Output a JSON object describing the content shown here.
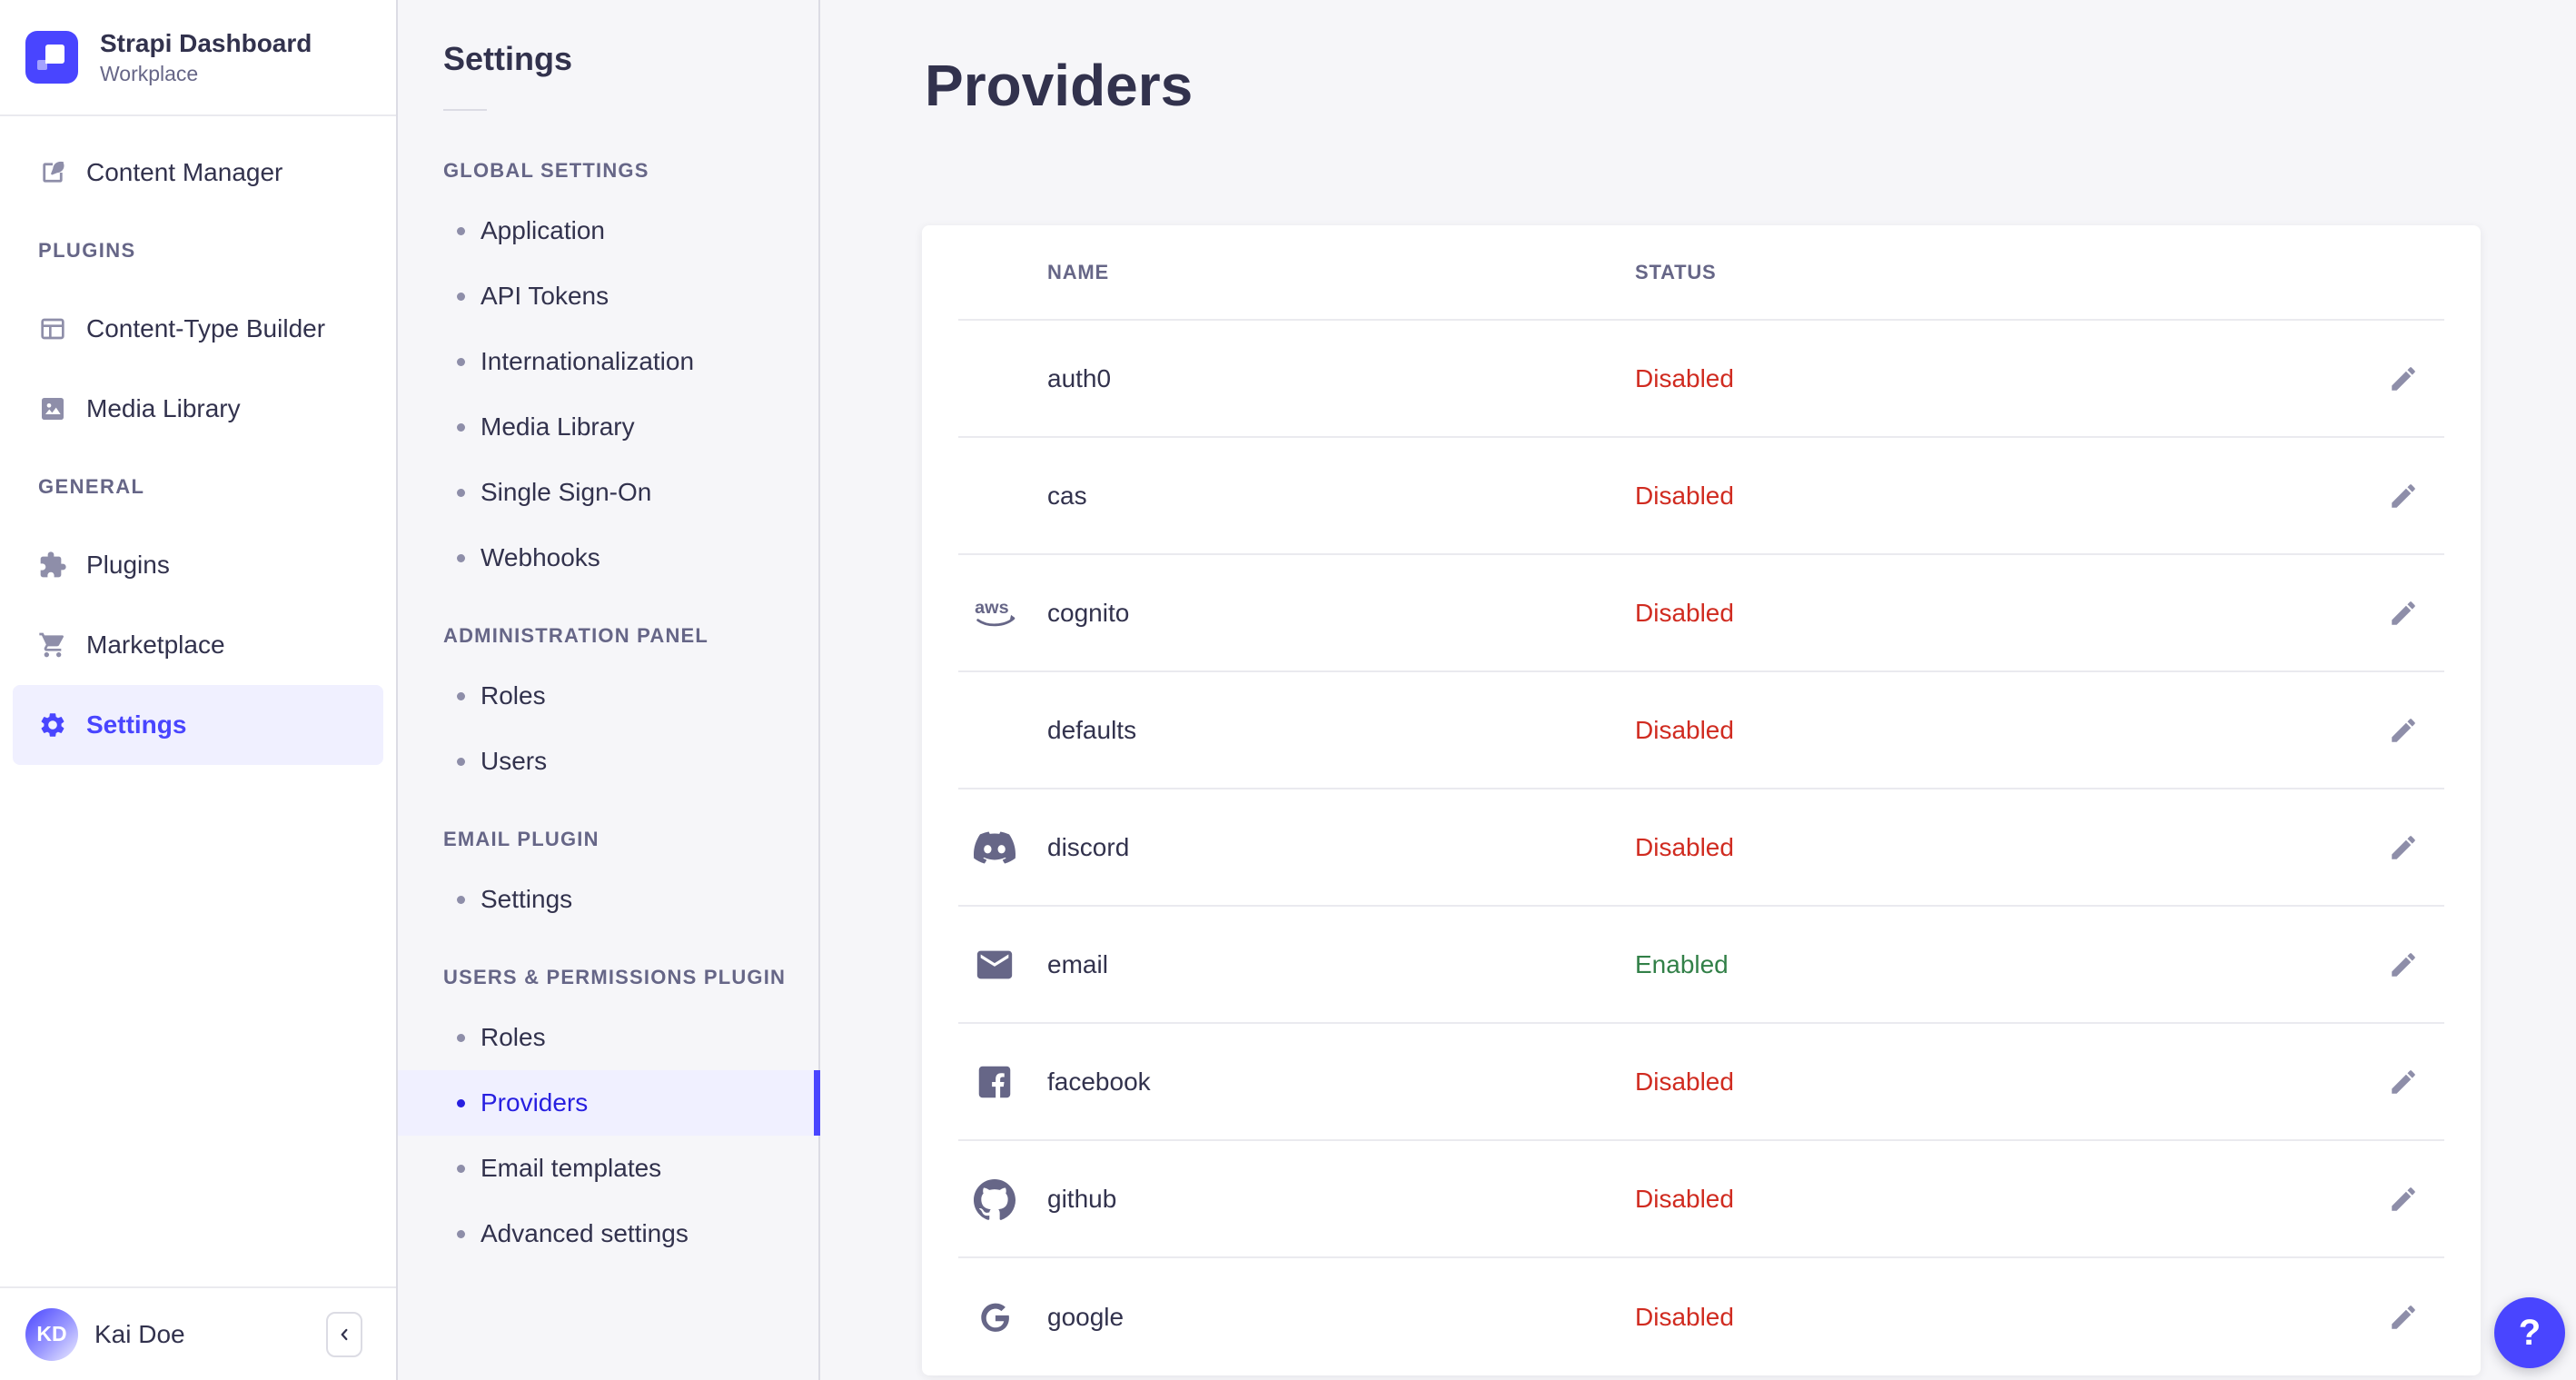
{
  "app": {
    "name": "Strapi Dashboard",
    "workspace": "Workplace",
    "logo_icon": "strapi-logo"
  },
  "colors": {
    "accent": "#4945FF",
    "accent_text": "#271FE0",
    "accent_bg": "#F0F0FF",
    "danger": "#D02B20",
    "success": "#328048",
    "text": "#32324D",
    "muted": "#666687",
    "icon_muted": "#8E8EA9",
    "border": "#DCDCE4",
    "row_border": "#EAEAEF",
    "page_bg": "#F6F6F9"
  },
  "main_sidebar": {
    "sections": [
      {
        "label": "",
        "items": [
          {
            "label": "Content Manager",
            "icon": "content-manager-icon",
            "active": false
          }
        ]
      },
      {
        "label": "PLUGINS",
        "items": [
          {
            "label": "Content-Type Builder",
            "icon": "content-type-builder-icon",
            "active": false
          },
          {
            "label": "Media Library",
            "icon": "media-library-icon",
            "active": false
          }
        ]
      },
      {
        "label": "GENERAL",
        "items": [
          {
            "label": "Plugins",
            "icon": "plugins-icon",
            "active": false
          },
          {
            "label": "Marketplace",
            "icon": "marketplace-icon",
            "active": false
          },
          {
            "label": "Settings",
            "icon": "settings-icon",
            "active": true
          }
        ]
      }
    ],
    "user": {
      "initials": "KD",
      "name": "Kai Doe"
    }
  },
  "settings_nav": {
    "title": "Settings",
    "sections": [
      {
        "label": "GLOBAL SETTINGS",
        "items": [
          {
            "label": "Application",
            "active": false
          },
          {
            "label": "API Tokens",
            "active": false
          },
          {
            "label": "Internationalization",
            "active": false
          },
          {
            "label": "Media Library",
            "active": false
          },
          {
            "label": "Single Sign-On",
            "active": false
          },
          {
            "label": "Webhooks",
            "active": false
          }
        ]
      },
      {
        "label": "ADMINISTRATION PANEL",
        "items": [
          {
            "label": "Roles",
            "active": false
          },
          {
            "label": "Users",
            "active": false
          }
        ]
      },
      {
        "label": "EMAIL PLUGIN",
        "items": [
          {
            "label": "Settings",
            "active": false
          }
        ]
      },
      {
        "label": "USERS & PERMISSIONS PLUGIN",
        "items": [
          {
            "label": "Roles",
            "active": false
          },
          {
            "label": "Providers",
            "active": true
          },
          {
            "label": "Email templates",
            "active": false
          },
          {
            "label": "Advanced settings",
            "active": false
          }
        ]
      }
    ]
  },
  "page": {
    "title": "Providers",
    "table": {
      "columns": [
        "NAME",
        "STATUS"
      ],
      "enabled_label": "Enabled",
      "disabled_label": "Disabled",
      "rows": [
        {
          "name": "auth0",
          "icon": null,
          "status": "Disabled"
        },
        {
          "name": "cas",
          "icon": null,
          "status": "Disabled"
        },
        {
          "name": "cognito",
          "icon": "aws-icon",
          "status": "Disabled"
        },
        {
          "name": "defaults",
          "icon": null,
          "status": "Disabled"
        },
        {
          "name": "discord",
          "icon": "discord-icon",
          "status": "Disabled"
        },
        {
          "name": "email",
          "icon": "email-icon",
          "status": "Enabled"
        },
        {
          "name": "facebook",
          "icon": "facebook-icon",
          "status": "Disabled"
        },
        {
          "name": "github",
          "icon": "github-icon",
          "status": "Disabled"
        },
        {
          "name": "google",
          "icon": "google-icon",
          "status": "Disabled"
        }
      ]
    }
  },
  "help_button": {
    "label": "?",
    "icon": "question-icon"
  }
}
